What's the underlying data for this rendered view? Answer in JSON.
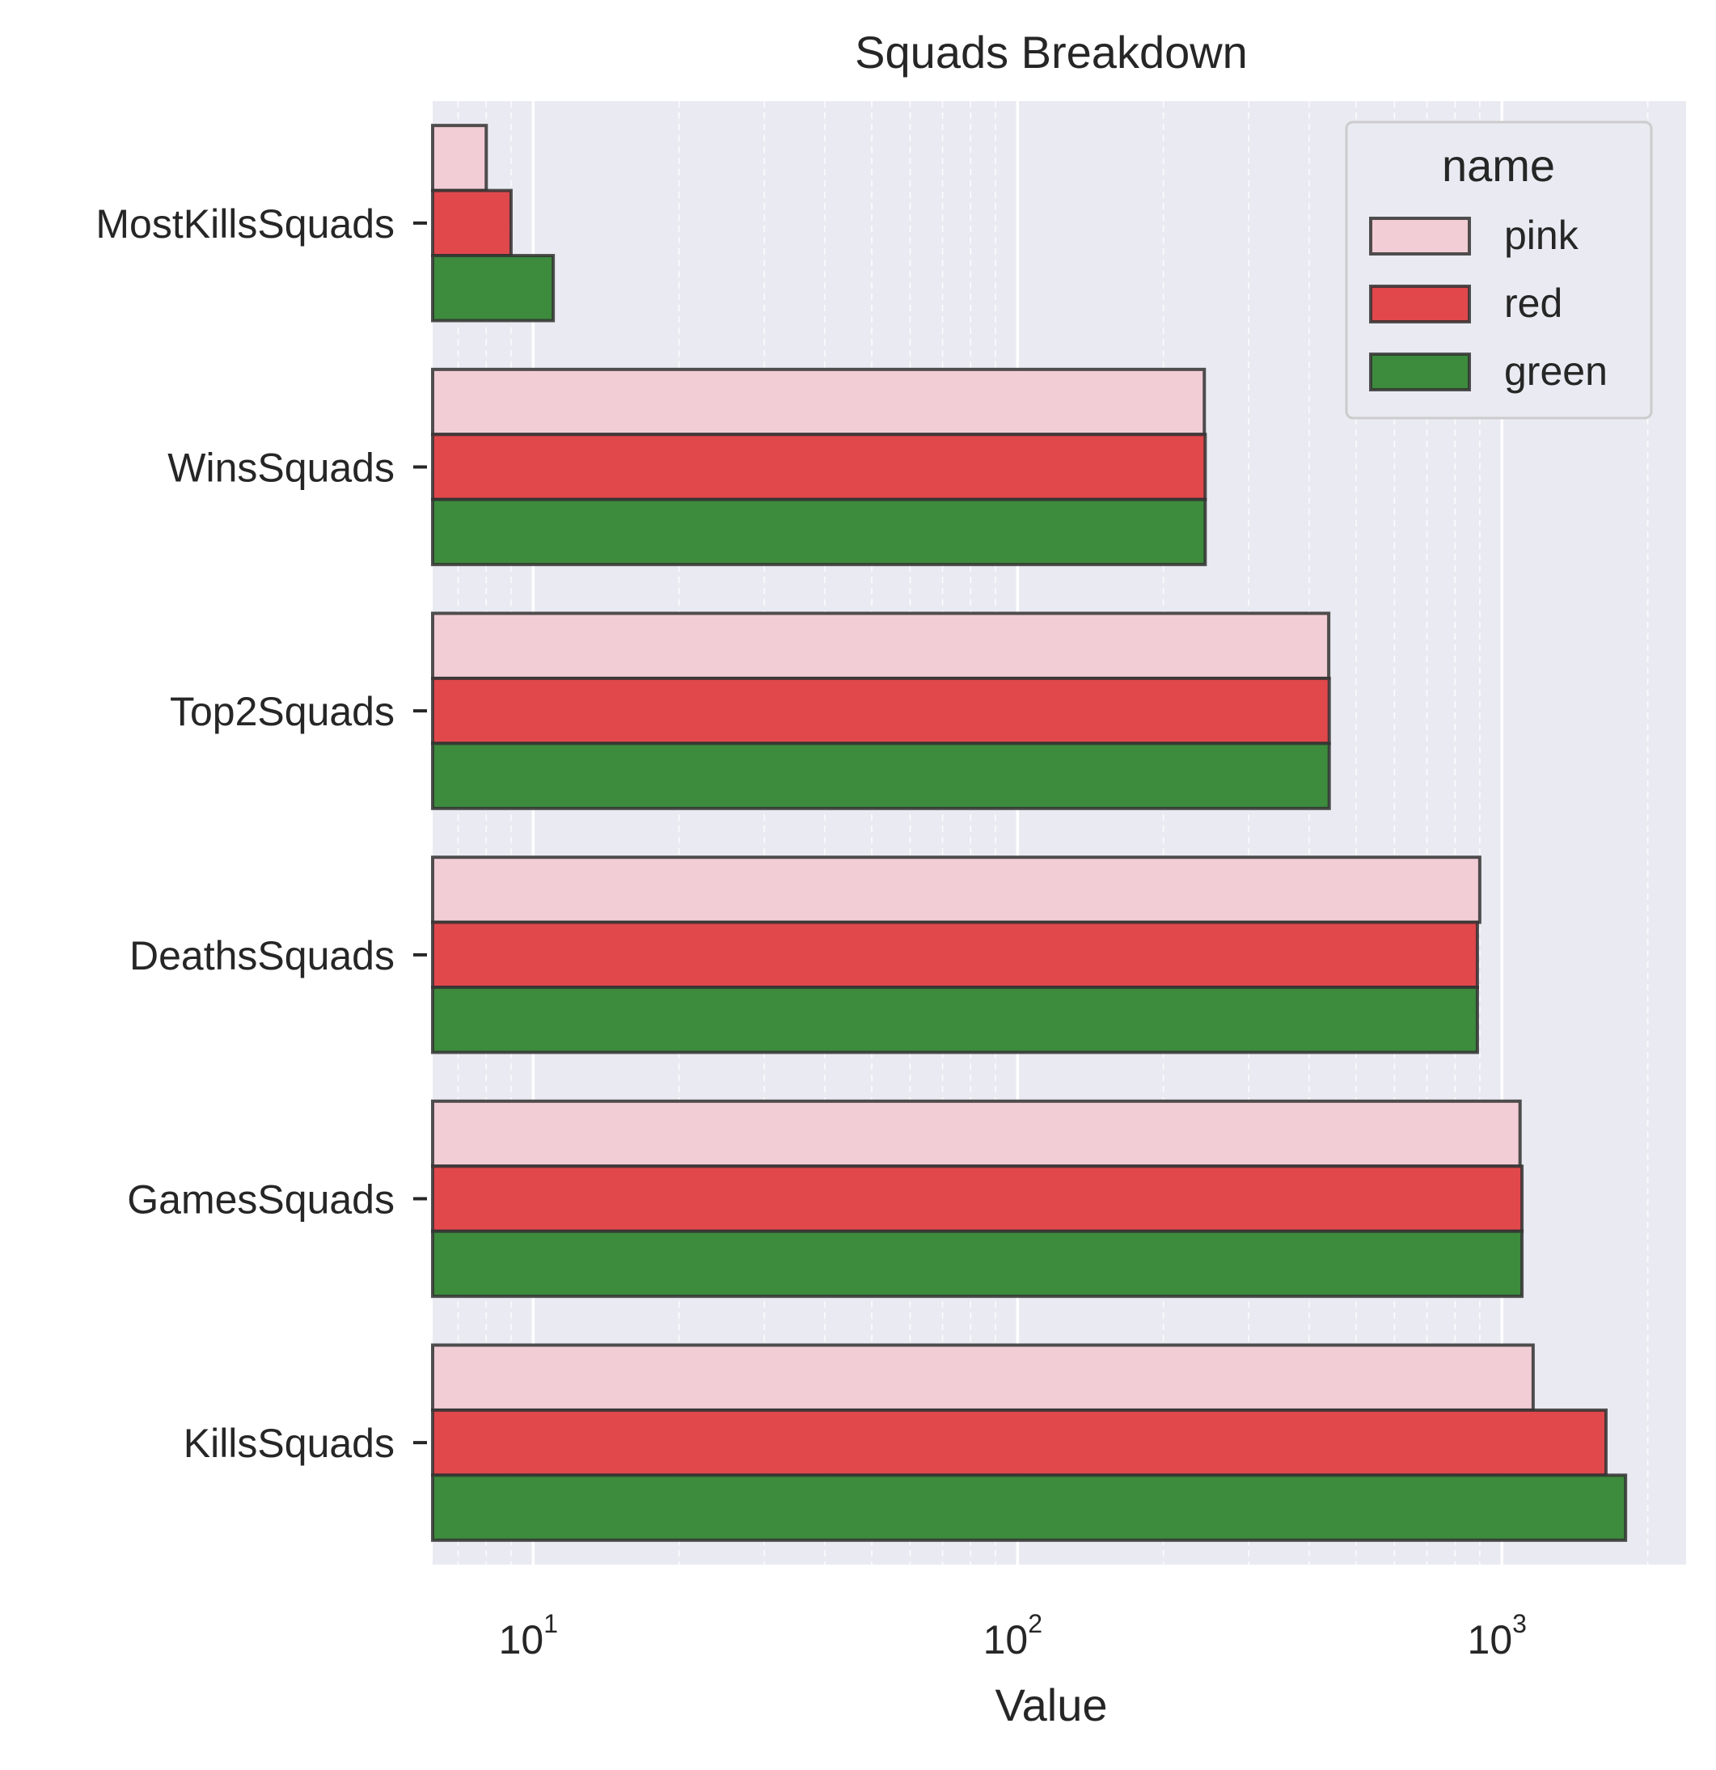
{
  "chart_data": {
    "type": "bar",
    "orientation": "horizontal",
    "title": "Squads Breakdown",
    "xlabel": "Value",
    "ylabel": "",
    "xscale": "log",
    "xlim": [
      6.2,
      2400
    ],
    "x_ticks": [
      {
        "value": 10,
        "base": "10",
        "exp": "1"
      },
      {
        "value": 100,
        "base": "10",
        "exp": "2"
      },
      {
        "value": 1000,
        "base": "10",
        "exp": "3"
      }
    ],
    "categories": [
      "MostKillsSquads",
      "WinsSquads",
      "Top2Squads",
      "DeathsSquads",
      "GamesSquads",
      "KillsSquads"
    ],
    "series": [
      {
        "name": "pink",
        "color": "#f2cdd5",
        "values": [
          8,
          243,
          439,
          900,
          1090,
          1160
        ]
      },
      {
        "name": "red",
        "color": "#e0484c",
        "values": [
          9,
          244,
          440,
          890,
          1100,
          1640
        ]
      },
      {
        "name": "green",
        "color": "#3d8b3d",
        "values": [
          11,
          244,
          440,
          890,
          1100,
          1800
        ]
      }
    ],
    "legend": {
      "title": "name",
      "placement": "top-right"
    },
    "grid": true
  }
}
